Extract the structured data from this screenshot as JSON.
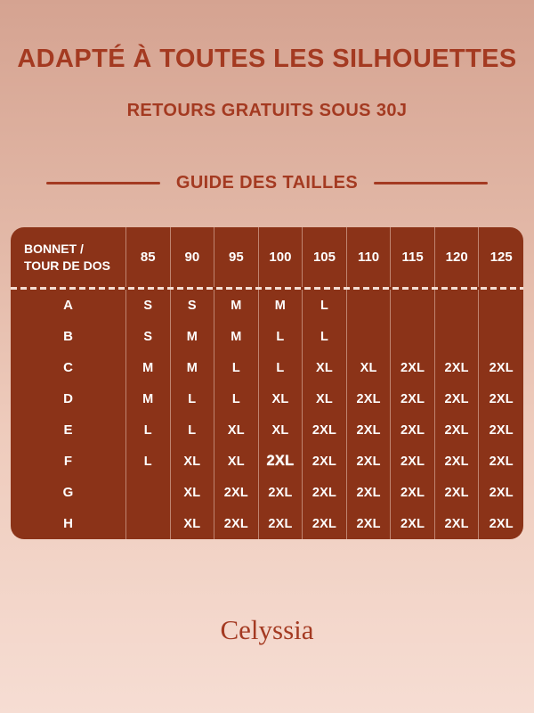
{
  "header": {
    "title": "ADAPTÉ À TOUTES LES SILHOUETTES",
    "subtitle": "RETOURS GRATUITS SOUS 30J"
  },
  "section": {
    "title": "GUIDE DES TAILLES"
  },
  "size_table": {
    "corner_header": "BONNET /\nTOUR DE DOS",
    "columns": [
      "85",
      "90",
      "95",
      "100",
      "105",
      "110",
      "115",
      "120",
      "125"
    ],
    "rows": [
      {
        "cup": "A",
        "values": [
          "S",
          "S",
          "M",
          "M",
          "L",
          "",
          "",
          "",
          ""
        ]
      },
      {
        "cup": "B",
        "values": [
          "S",
          "M",
          "M",
          "L",
          "L",
          "",
          "",
          "",
          ""
        ]
      },
      {
        "cup": "C",
        "values": [
          "M",
          "M",
          "L",
          "L",
          "XL",
          "XL",
          "2XL",
          "2XL",
          "2XL"
        ]
      },
      {
        "cup": "D",
        "values": [
          "M",
          "L",
          "L",
          "XL",
          "XL",
          "2XL",
          "2XL",
          "2XL",
          "2XL"
        ]
      },
      {
        "cup": "E",
        "values": [
          "L",
          "L",
          "XL",
          "XL",
          "2XL",
          "2XL",
          "2XL",
          "2XL",
          "2XL"
        ]
      },
      {
        "cup": "F",
        "values": [
          "L",
          "XL",
          "XL",
          "2XL",
          "2XL",
          "2XL",
          "2XL",
          "2XL",
          "2XL"
        ],
        "bold_index": 3
      },
      {
        "cup": "G",
        "values": [
          "",
          "XL",
          "2XL",
          "2XL",
          "2XL",
          "2XL",
          "2XL",
          "2XL",
          "2XL"
        ]
      },
      {
        "cup": "H",
        "values": [
          "",
          "XL",
          "2XL",
          "2XL",
          "2XL",
          "2XL",
          "2XL",
          "2XL",
          "2XL"
        ]
      }
    ]
  },
  "footer": {
    "brand": "Celyssia"
  },
  "colors": {
    "accent_red": "#A43A21",
    "table_brown": "#8B3318",
    "brand_red": "#A43A22",
    "cell_text": "#FFFFFF",
    "bg_top": "#D5A391",
    "bg_bottom": "#F6DDD3"
  }
}
